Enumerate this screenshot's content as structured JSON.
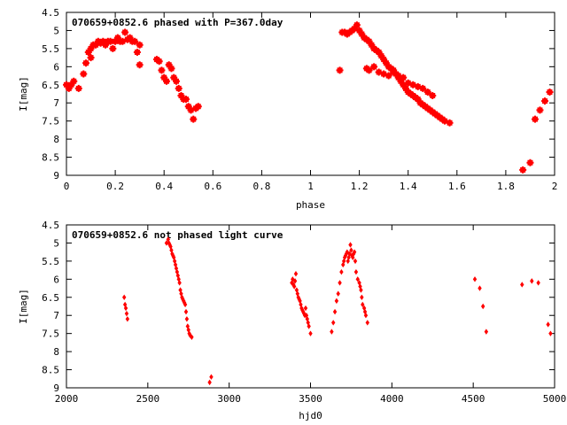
{
  "chart_data": [
    {
      "type": "scatter",
      "title": "070659+0852.6 phased with P=367.0day",
      "xlabel": "phase",
      "ylabel": "I[mag]",
      "xlim": [
        0,
        2
      ],
      "ylim": [
        9,
        4.5
      ],
      "y_inverted": true,
      "xticks": [
        "0",
        "0.2",
        "0.4",
        "0.6",
        "0.8",
        "1",
        "1.2",
        "1.4",
        "1.6",
        "1.8",
        "2"
      ],
      "yticks": [
        "4.5",
        "5",
        "5.5",
        "6",
        "6.5",
        "7",
        "7.5",
        "8",
        "8.5",
        "9"
      ],
      "grid": false,
      "marker_color": "#ff0000",
      "series": [
        {
          "x": [
            0.0,
            0.01,
            0.02,
            0.03,
            0.05,
            0.07,
            0.08,
            0.09,
            0.1,
            0.1,
            0.11,
            0.12,
            0.13,
            0.14,
            0.15,
            0.16,
            0.17,
            0.18,
            0.19,
            0.2,
            0.21,
            0.22,
            0.23,
            0.24,
            0.25,
            0.26,
            0.27,
            0.28,
            0.29,
            0.3,
            0.3,
            0.37,
            0.38,
            0.39,
            0.4,
            0.41,
            0.42,
            0.43,
            0.44,
            0.45,
            0.46,
            0.47,
            0.48,
            0.49,
            0.5,
            0.51,
            0.52,
            0.53,
            0.54,
            1.12,
            1.13,
            1.14,
            1.15,
            1.16,
            1.17,
            1.18,
            1.19,
            1.2,
            1.21,
            1.22,
            1.23,
            1.24,
            1.25,
            1.26,
            1.27,
            1.28,
            1.29,
            1.3,
            1.31,
            1.32,
            1.33,
            1.34,
            1.35,
            1.36,
            1.37,
            1.38,
            1.39,
            1.4,
            1.41,
            1.42,
            1.43,
            1.44,
            1.45,
            1.46,
            1.47,
            1.48,
            1.49,
            1.5,
            1.51,
            1.52,
            1.53,
            1.54,
            1.55,
            1.57,
            1.23,
            1.24,
            1.26,
            1.28,
            1.3,
            1.32,
            1.34,
            1.36,
            1.38,
            1.4,
            1.42,
            1.44,
            1.46,
            1.48,
            1.5,
            1.87,
            1.9,
            1.92,
            1.94,
            1.96,
            1.98
          ],
          "y": [
            6.5,
            6.6,
            6.5,
            6.4,
            6.6,
            6.2,
            5.9,
            5.6,
            5.75,
            5.5,
            5.4,
            5.4,
            5.3,
            5.35,
            5.3,
            5.4,
            5.3,
            5.3,
            5.5,
            5.3,
            5.2,
            5.3,
            5.3,
            5.05,
            5.25,
            5.2,
            5.3,
            5.3,
            5.6,
            5.4,
            5.95,
            5.8,
            5.85,
            6.1,
            6.3,
            6.4,
            5.95,
            6.05,
            6.3,
            6.4,
            6.6,
            6.8,
            6.9,
            6.9,
            7.1,
            7.2,
            7.45,
            7.15,
            7.1,
            6.1,
            5.05,
            5.05,
            5.1,
            5.05,
            5.0,
            4.95,
            4.85,
            5.0,
            5.1,
            5.2,
            5.25,
            5.3,
            5.4,
            5.5,
            5.55,
            5.6,
            5.7,
            5.8,
            5.9,
            6.0,
            6.05,
            6.1,
            6.2,
            6.3,
            6.4,
            6.5,
            6.6,
            6.7,
            6.75,
            6.8,
            6.85,
            6.9,
            7.0,
            7.05,
            7.1,
            7.15,
            7.2,
            7.25,
            7.3,
            7.35,
            7.4,
            7.45,
            7.5,
            7.55,
            6.05,
            6.1,
            6.0,
            6.15,
            6.2,
            6.25,
            6.15,
            6.25,
            6.3,
            6.45,
            6.5,
            6.55,
            6.6,
            6.7,
            6.8,
            8.85,
            8.65,
            7.45,
            7.2,
            6.95,
            6.7
          ]
        }
      ]
    },
    {
      "type": "scatter",
      "title": "070659+0852.6 not phased light curve",
      "xlabel": "hjd0",
      "ylabel": "I[mag]",
      "xlim": [
        2000,
        5000
      ],
      "ylim": [
        9,
        4.5
      ],
      "y_inverted": true,
      "xticks": [
        "2000",
        "2500",
        "3000",
        "3500",
        "4000",
        "4500",
        "5000"
      ],
      "yticks": [
        "4.5",
        "5",
        "5.5",
        "6",
        "6.5",
        "7",
        "7.5",
        "8",
        "8.5",
        "9"
      ],
      "grid": false,
      "marker_color": "#ff0000",
      "series": [
        {
          "x": [
            2355,
            2360,
            2365,
            2370,
            2375,
            2615,
            2625,
            2630,
            2635,
            2640,
            2645,
            2650,
            2655,
            2660,
            2665,
            2670,
            2675,
            2680,
            2685,
            2690,
            2695,
            2700,
            2705,
            2710,
            2715,
            2720,
            2725,
            2730,
            2735,
            2740,
            2745,
            2750,
            2755,
            2760,
            2770,
            2880,
            2890,
            3385,
            3390,
            3395,
            3400,
            3405,
            3410,
            3415,
            3420,
            3425,
            3430,
            3435,
            3440,
            3445,
            3450,
            3455,
            3460,
            3465,
            3470,
            3475,
            3480,
            3485,
            3490,
            3500,
            3630,
            3640,
            3650,
            3660,
            3670,
            3680,
            3690,
            3700,
            3705,
            3710,
            3715,
            3720,
            3725,
            3730,
            3735,
            3740,
            3745,
            3750,
            3755,
            3760,
            3765,
            3770,
            3775,
            3780,
            3790,
            3800,
            3805,
            3810,
            3815,
            3820,
            3830,
            3835,
            3840,
            3850,
            4510,
            4540,
            4560,
            4580,
            4800,
            4860,
            4900,
            4960,
            4975
          ],
          "y": [
            6.5,
            6.7,
            6.8,
            6.95,
            7.1,
            5.0,
            4.9,
            5.0,
            5.05,
            5.1,
            5.2,
            5.3,
            5.35,
            5.4,
            5.5,
            5.6,
            5.7,
            5.8,
            5.9,
            6.0,
            6.1,
            6.3,
            6.4,
            6.5,
            6.55,
            6.6,
            6.65,
            6.7,
            6.9,
            7.1,
            7.3,
            7.4,
            7.5,
            7.55,
            7.6,
            8.85,
            8.7,
            6.1,
            6.0,
            6.15,
            6.2,
            6.05,
            5.85,
            6.3,
            6.4,
            6.5,
            6.55,
            6.6,
            6.7,
            6.8,
            6.85,
            6.9,
            6.95,
            7.0,
            6.8,
            7.0,
            7.1,
            7.2,
            7.3,
            7.5,
            7.45,
            7.2,
            6.9,
            6.6,
            6.4,
            6.1,
            5.8,
            5.6,
            5.5,
            5.4,
            5.35,
            5.3,
            5.25,
            5.5,
            5.4,
            5.3,
            5.05,
            5.2,
            5.35,
            5.4,
            5.3,
            5.25,
            5.5,
            5.8,
            6.0,
            6.1,
            6.2,
            6.3,
            6.5,
            6.7,
            6.8,
            6.9,
            7.0,
            7.2,
            6.0,
            6.25,
            6.75,
            7.45,
            6.15,
            6.05,
            6.1,
            7.25,
            7.5
          ]
        }
      ]
    }
  ]
}
